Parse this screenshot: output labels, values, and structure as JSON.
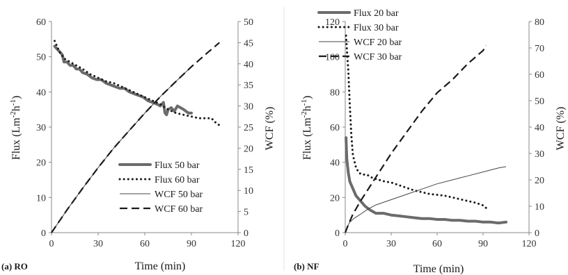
{
  "chart_data": [
    {
      "type": "line",
      "panel_label": "(a) RO",
      "xlabel": "Time (min)",
      "ylabel": "Flux (Lm-2h-1)",
      "y2label": "WCF (%)",
      "xlim": [
        0,
        120
      ],
      "ylim": [
        0,
        60
      ],
      "y2lim": [
        0,
        50
      ],
      "xticks": [
        0,
        30,
        60,
        90,
        120
      ],
      "yticks": [
        0,
        10,
        20,
        30,
        40,
        50,
        60
      ],
      "y2ticks": [
        0,
        5,
        10,
        15,
        20,
        25,
        30,
        35,
        40,
        45,
        50
      ],
      "grid": false,
      "legend_position": "lower-right",
      "series": [
        {
          "name": "Flux 50 bar",
          "axis": "left",
          "style": "thick",
          "color": "#6b6b6b",
          "x": [
            2,
            4,
            5,
            7,
            8,
            10,
            12,
            14,
            16,
            18,
            20,
            23,
            26,
            29,
            32,
            35,
            38,
            41,
            44,
            47,
            50,
            53,
            56,
            59,
            62,
            65,
            68,
            70,
            72,
            73,
            74,
            75,
            77,
            79,
            81,
            83,
            85,
            88,
            90
          ],
          "y": [
            53,
            52,
            51.5,
            50.5,
            48.5,
            48.5,
            47.5,
            47.5,
            46.5,
            46.5,
            45.5,
            45,
            44,
            43.5,
            43.5,
            42.5,
            42,
            41.5,
            41,
            41,
            40,
            39.5,
            39,
            38.5,
            37.5,
            37,
            36.5,
            36,
            37,
            34,
            33.5,
            35,
            35.5,
            34.5,
            36,
            35.5,
            35,
            34,
            34
          ]
        },
        {
          "name": "Flux 60 bar",
          "axis": "left",
          "style": "dotted",
          "color": "#1a1a1a",
          "x": [
            2,
            5,
            8,
            12,
            16,
            20,
            25,
            30,
            35,
            40,
            45,
            50,
            55,
            60,
            65,
            70,
            75,
            80,
            85,
            90,
            95,
            100,
            103,
            105,
            108
          ],
          "y": [
            54.5,
            51.5,
            49.5,
            48.5,
            47.5,
            46.5,
            45,
            44,
            43,
            42.5,
            41.5,
            40.5,
            39.5,
            38.5,
            37.5,
            36.5,
            35,
            34,
            33.5,
            33,
            32.5,
            32.5,
            32.5,
            31.5,
            30.5
          ]
        },
        {
          "name": "WCF 50 bar",
          "axis": "right",
          "style": "thin",
          "color": "#444444",
          "x": [
            0,
            10,
            20,
            30,
            40,
            50,
            60,
            70,
            80,
            90
          ],
          "y": [
            0,
            5.4,
            10.5,
            15.4,
            20,
            24.2,
            28.3,
            32.2,
            35.8,
            39.3
          ]
        },
        {
          "name": "WCF 60 bar",
          "axis": "right",
          "style": "dashed",
          "color": "#1a1a1a",
          "x": [
            0,
            10,
            20,
            30,
            40,
            50,
            60,
            70,
            80,
            90,
            100,
            108
          ],
          "y": [
            0,
            5.4,
            10.5,
            15.4,
            20,
            24.2,
            28.3,
            32.2,
            35.8,
            39.3,
            42.5,
            45
          ]
        }
      ]
    },
    {
      "type": "line",
      "panel_label": "(b) NF",
      "xlabel": "Time (min)",
      "ylabel": "Flux (Lm-2h-1)",
      "y2label": "WCF (%)",
      "xlim": [
        0,
        120
      ],
      "ylim": [
        0,
        120
      ],
      "y2lim": [
        0,
        80
      ],
      "xticks": [
        0,
        30,
        60,
        90,
        120
      ],
      "yticks": [
        0,
        20,
        40,
        60,
        80,
        100,
        120
      ],
      "y2ticks": [
        0,
        10,
        20,
        30,
        40,
        50,
        60,
        70,
        80
      ],
      "grid": false,
      "legend_position": "top-left",
      "series": [
        {
          "name": "Flux 20 bar",
          "axis": "left",
          "style": "thick",
          "color": "#6b6b6b",
          "x": [
            0.5,
            1,
            2,
            3,
            5,
            7,
            10,
            13,
            16,
            20,
            25,
            30,
            35,
            40,
            45,
            50,
            55,
            60,
            65,
            70,
            75,
            80,
            85,
            90,
            95,
            100,
            105
          ],
          "y": [
            54,
            42,
            34,
            29,
            25,
            21,
            18,
            15,
            13,
            11,
            11,
            10,
            9.5,
            9,
            8.5,
            8,
            8,
            7.5,
            7.5,
            7,
            7,
            6.5,
            6.5,
            6,
            6,
            5.5,
            6
          ]
        },
        {
          "name": "Flux 30 bar",
          "axis": "left",
          "style": "dotted",
          "color": "#1a1a1a",
          "x": [
            0.5,
            1,
            2,
            3,
            4,
            5,
            7,
            9,
            11,
            14,
            18,
            22,
            26,
            30,
            35,
            40,
            45,
            50,
            55,
            60,
            65,
            70,
            75,
            80,
            85,
            90,
            92
          ],
          "y": [
            112,
            105,
            92,
            72,
            55,
            44,
            37,
            34,
            33,
            33,
            31,
            30,
            29,
            28.5,
            27,
            25.5,
            24,
            23,
            22,
            21.5,
            21,
            20,
            19,
            18,
            17,
            15.5,
            14
          ]
        },
        {
          "name": "WCF 20 bar",
          "axis": "right",
          "style": "thin",
          "color": "#444444",
          "x": [
            0,
            1,
            3,
            6,
            10,
            15,
            20,
            30,
            40,
            50,
            60,
            70,
            80,
            90,
            100,
            105
          ],
          "y": [
            0,
            2,
            4,
            5.5,
            7,
            9,
            10.5,
            12.5,
            14.5,
            16.5,
            18.5,
            20,
            21.5,
            23,
            24.5,
            25
          ]
        },
        {
          "name": "WCF 30 bar",
          "axis": "right",
          "style": "dashed",
          "color": "#1a1a1a",
          "x": [
            0,
            2,
            5,
            10,
            20,
            30,
            40,
            50,
            60,
            70,
            80,
            90,
            92
          ],
          "y": [
            0,
            3,
            7,
            12,
            21,
            30,
            38,
            46,
            53,
            58,
            64,
            69,
            71
          ]
        }
      ]
    }
  ]
}
